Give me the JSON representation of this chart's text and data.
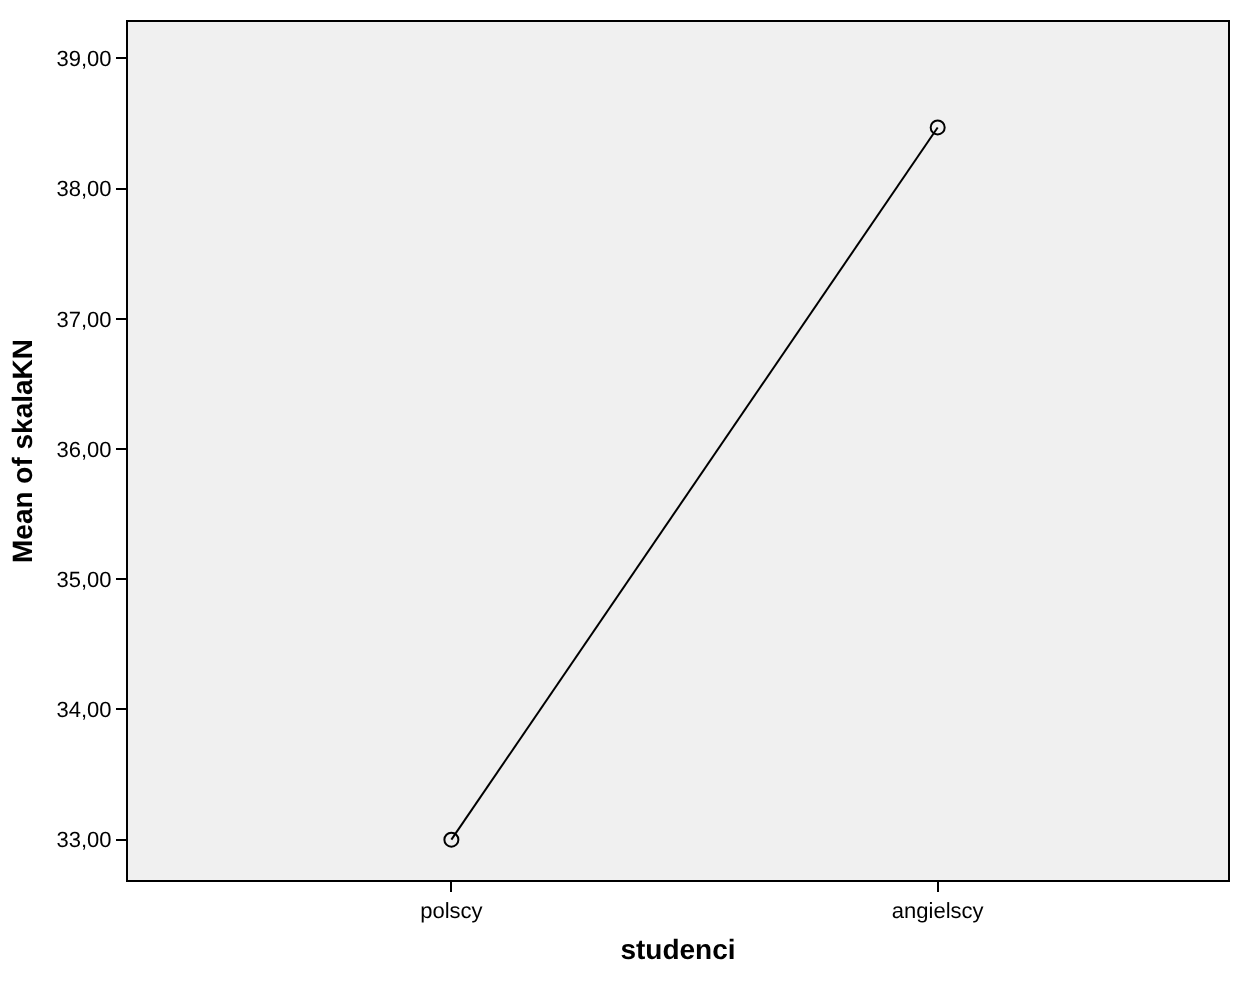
{
  "chart_data": {
    "type": "line",
    "xlabel": "studenci",
    "ylabel": "Mean of skalaKN",
    "categories": [
      "polscy",
      "angielscy"
    ],
    "series": [
      {
        "color": "#000000",
        "values": [
          33.0,
          38.47
        ]
      }
    ],
    "ylim": [
      32.69,
      39.28
    ],
    "yticks": [
      {
        "value": 33,
        "label": "33,00"
      },
      {
        "value": 34,
        "label": "34,00"
      },
      {
        "value": 35,
        "label": "35,00"
      },
      {
        "value": 36,
        "label": "36,00"
      },
      {
        "value": 37,
        "label": "37,00"
      },
      {
        "value": 38,
        "label": "38,00"
      },
      {
        "value": 39,
        "label": "39,00"
      }
    ],
    "marker": "circle",
    "line_style": "solid",
    "grid": false
  }
}
